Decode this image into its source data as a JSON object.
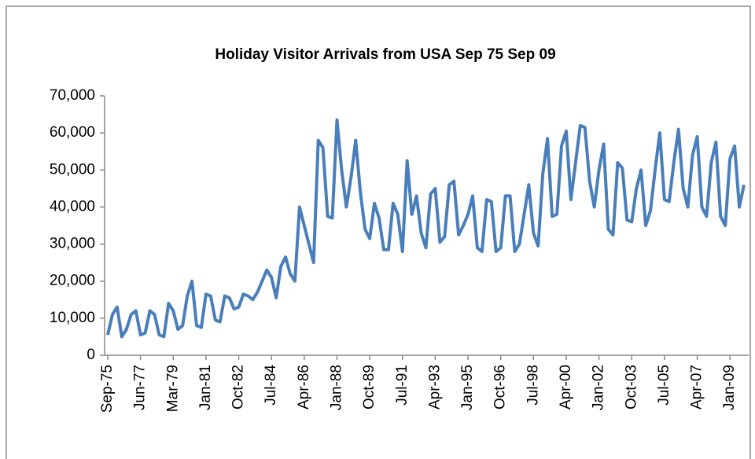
{
  "chart_data": {
    "type": "line",
    "title": "Holiday Visitor Arrivals from USA Sep 75 Sep 09",
    "categories": [
      "Sep-75",
      null,
      null,
      null,
      null,
      null,
      null,
      "Jun-77",
      null,
      null,
      null,
      null,
      null,
      null,
      "Mar-79",
      null,
      null,
      null,
      null,
      null,
      null,
      "Jan-81",
      null,
      null,
      null,
      null,
      null,
      null,
      "Oct-82",
      null,
      null,
      null,
      null,
      null,
      null,
      "Jul-84",
      null,
      null,
      null,
      null,
      null,
      null,
      "Apr-86",
      null,
      null,
      null,
      null,
      null,
      null,
      "Jan-88",
      null,
      null,
      null,
      null,
      null,
      null,
      "Oct-89",
      null,
      null,
      null,
      null,
      null,
      null,
      "Jul-91",
      null,
      null,
      null,
      null,
      null,
      null,
      "Apr-93",
      null,
      null,
      null,
      null,
      null,
      null,
      "Jan-95",
      null,
      null,
      null,
      null,
      null,
      null,
      "Oct-96",
      null,
      null,
      null,
      null,
      null,
      null,
      "Jul-98",
      null,
      null,
      null,
      null,
      null,
      null,
      "Apr-00",
      null,
      null,
      null,
      null,
      null,
      null,
      "Jan-02",
      null,
      null,
      null,
      null,
      null,
      null,
      "Oct-03",
      null,
      null,
      null,
      null,
      null,
      null,
      "Jul-05",
      null,
      null,
      null,
      null,
      null,
      null,
      "Apr-07",
      null,
      null,
      null,
      null,
      null,
      null,
      "Jan-09",
      null,
      null,
      null
    ],
    "series": [
      {
        "name": "Holiday Visitor Arrivals",
        "color": "#4a7ebb",
        "values": [
          5500,
          11000,
          13000,
          5000,
          7000,
          11000,
          12000,
          5500,
          6000,
          12000,
          11000,
          5500,
          5000,
          14000,
          12000,
          7000,
          8000,
          16000,
          20000,
          8000,
          7500,
          16500,
          16000,
          9500,
          9000,
          16000,
          15500,
          12500,
          13000,
          16500,
          16000,
          15000,
          17000,
          20000,
          23000,
          21000,
          15500,
          24000,
          26500,
          22000,
          20000,
          40000,
          35000,
          30000,
          25000,
          58000,
          56000,
          37500,
          37000,
          63500,
          50000,
          40000,
          48000,
          58000,
          44000,
          34000,
          31500,
          41000,
          37000,
          28500,
          28500,
          41000,
          38000,
          28000,
          52500,
          38000,
          43000,
          33000,
          29000,
          43500,
          45000,
          30500,
          32000,
          46000,
          47000,
          32500,
          35000,
          38000,
          43000,
          29000,
          28000,
          42000,
          41500,
          28000,
          29000,
          43000,
          43000,
          28000,
          30000,
          38000,
          46000,
          33000,
          29500,
          49000,
          58500,
          37500,
          38000,
          56500,
          60500,
          42000,
          52000,
          62000,
          61500,
          47000,
          40000,
          50000,
          57000,
          34000,
          32500,
          52000,
          50500,
          36500,
          36000,
          45000,
          50000,
          35000,
          39000,
          50000,
          60000,
          42000,
          41500,
          52000,
          61000,
          45000,
          40000,
          54000,
          59000,
          40000,
          37500,
          52000,
          57500,
          37500,
          35000,
          53000,
          56500,
          40000,
          46000
        ]
      }
    ],
    "ylim": [
      0,
      70000
    ],
    "yticks": [
      0,
      {
        "value": 10000,
        "label": "10,000"
      },
      {
        "value": 20000,
        "label": "20,000"
      },
      {
        "value": 30000,
        "label": "30,000"
      },
      {
        "value": 40000,
        "label": "40,000"
      },
      {
        "value": 50000,
        "label": "50,000"
      },
      {
        "value": 60000,
        "label": "60,000"
      },
      {
        "value": 70000,
        "label": "70,000"
      }
    ],
    "grid": false
  }
}
